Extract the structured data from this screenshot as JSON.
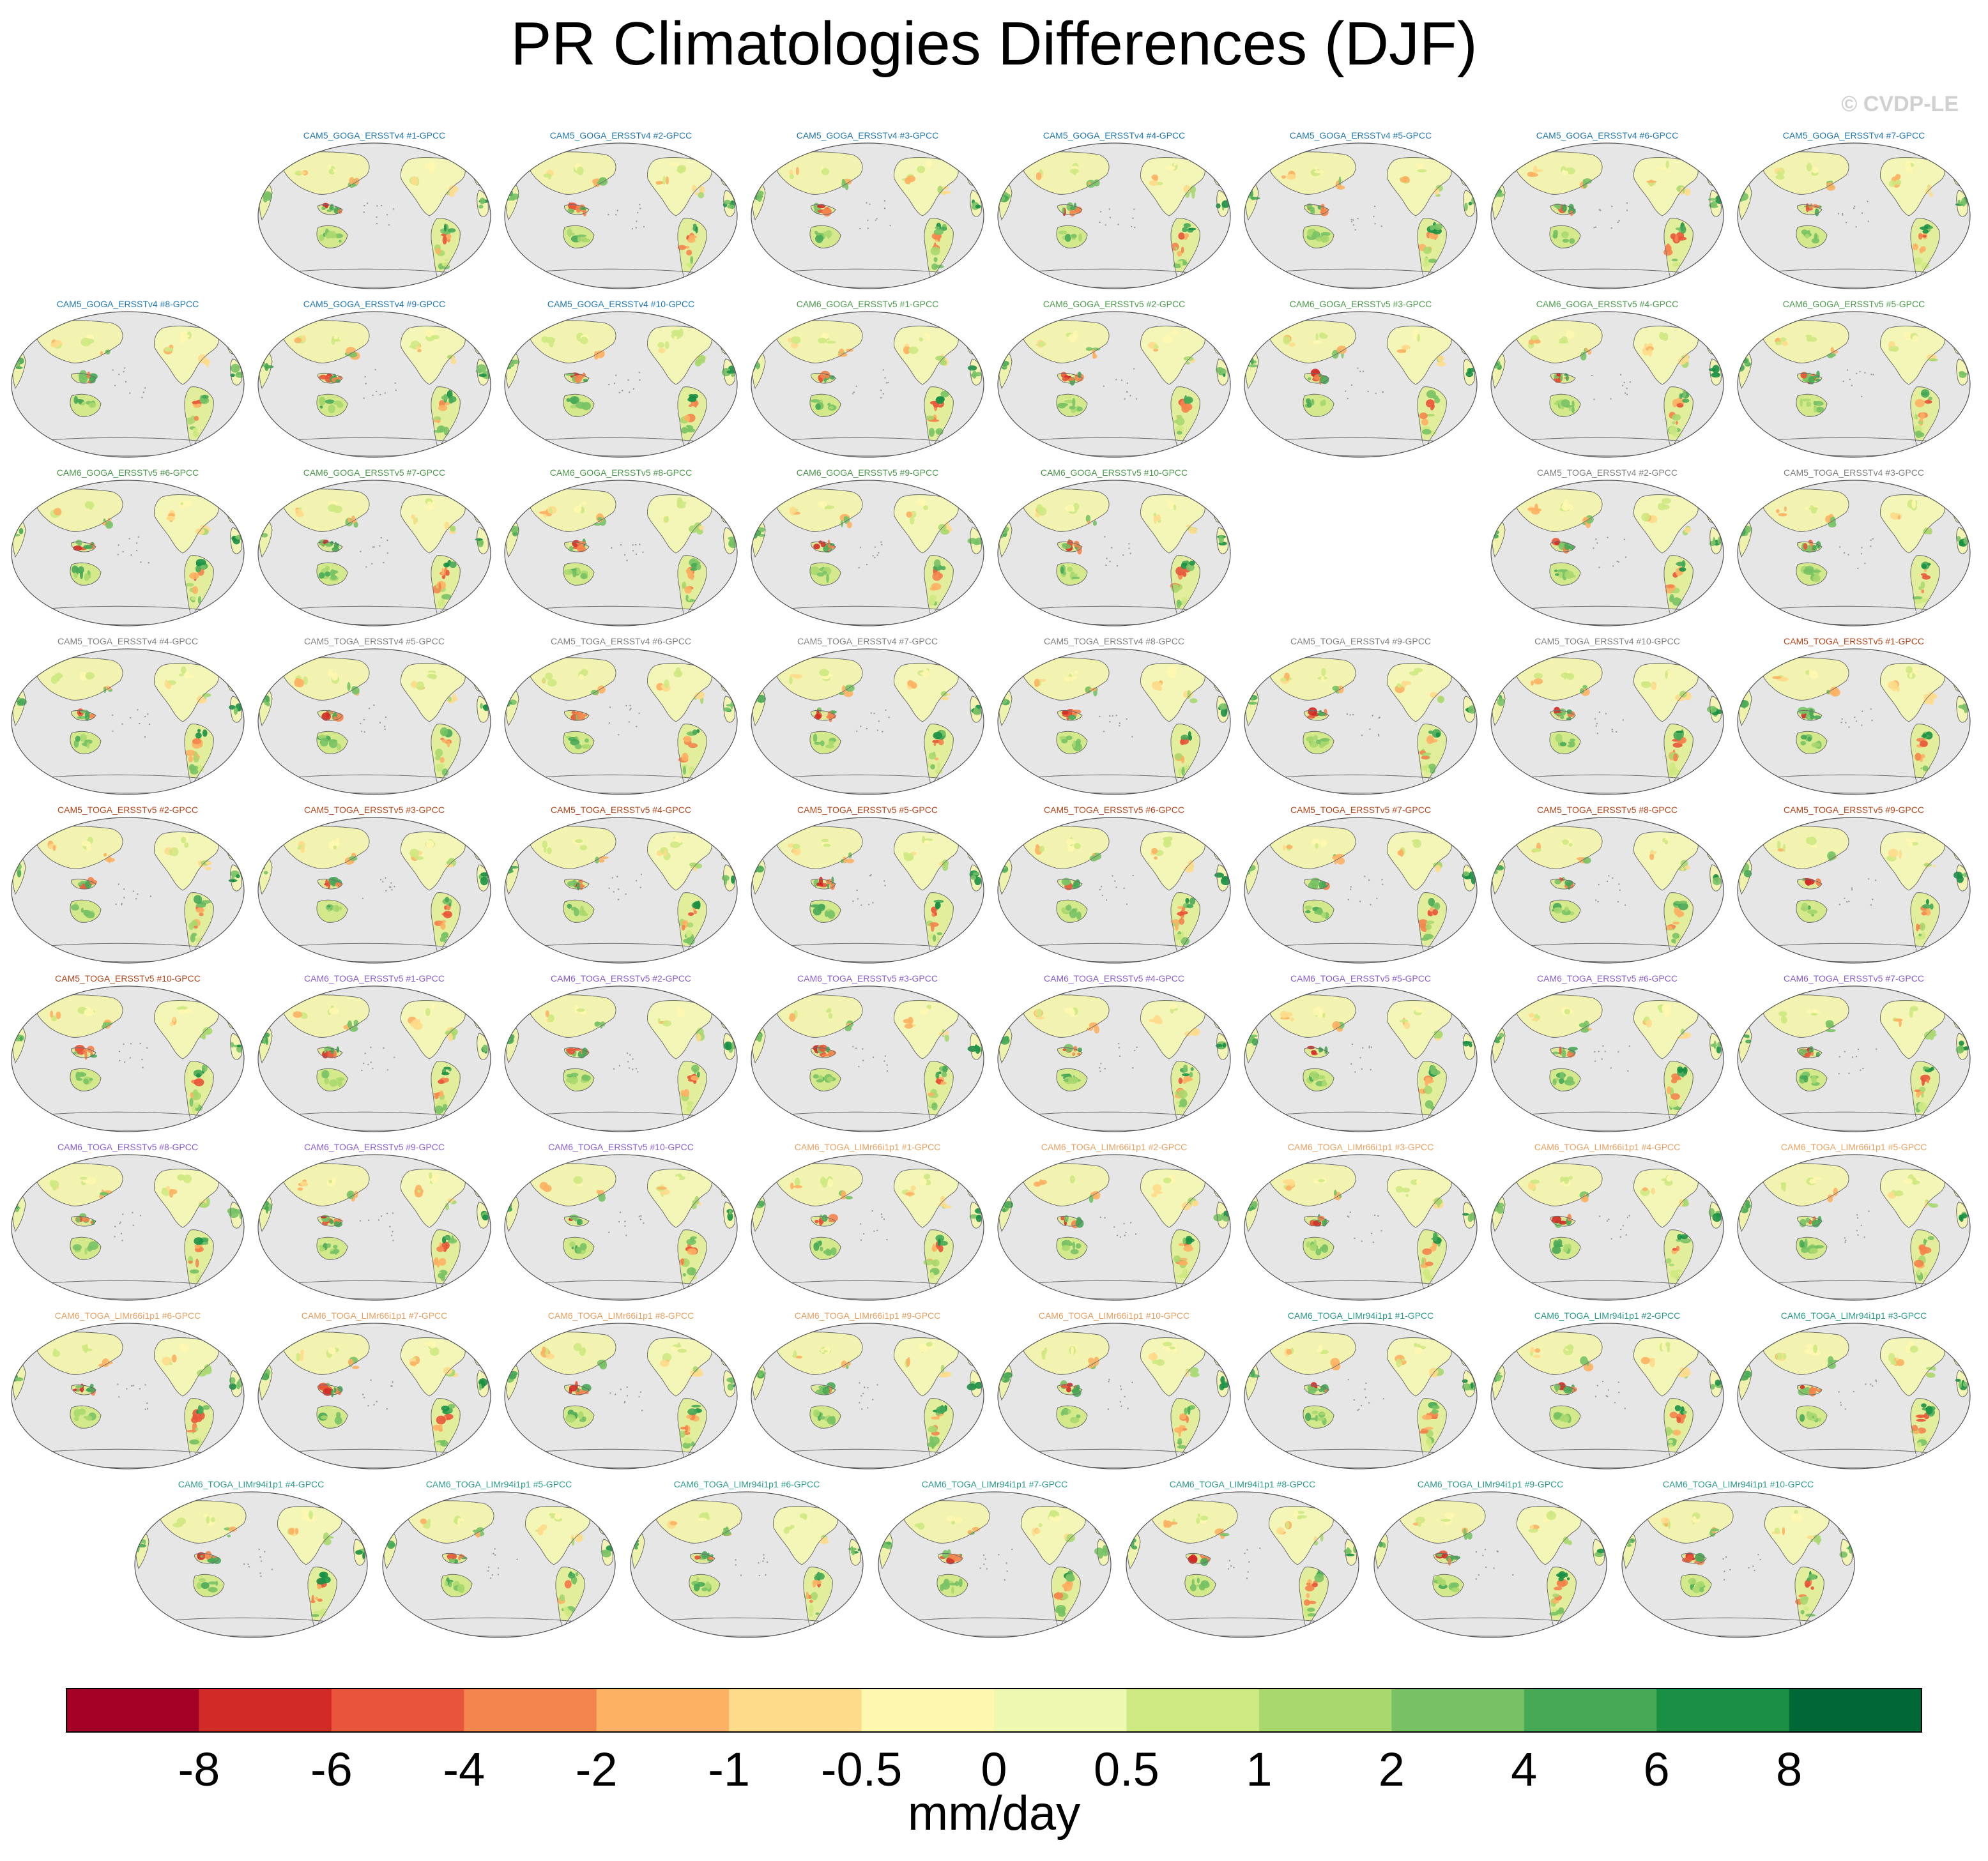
{
  "title": "PR Climatologies Differences (DJF)",
  "watermark": "© CVDP-LE",
  "colorbar": {
    "units": "mm/day",
    "tick_labels": [
      "-8",
      "-6",
      "-4",
      "-2",
      "-1",
      "-0.5",
      "0",
      "0.5",
      "1",
      "2",
      "4",
      "6",
      "8"
    ],
    "colors": [
      "#a50026",
      "#d22b27",
      "#e8553a",
      "#f4844d",
      "#fcb163",
      "#fedb8b",
      "#fef7b0",
      "#eff8b0",
      "#cee982",
      "#a8d86e",
      "#78c265",
      "#47a956",
      "#1a9045",
      "#006837"
    ]
  },
  "chart_data": {
    "type": "heatmap",
    "map_projection": "global, Pacific-centered",
    "variable": "PR",
    "season": "DJF",
    "units": "mm/day",
    "layout": "9 rows of global difference maps; row 3 has an empty gap between #10 and #2",
    "series_colors": {
      "CAM5_GOGA_ERSSTv4": "#1f78b4",
      "CAM6_GOGA_ERSSTv5": "#4a9a4a",
      "CAM5_TOGA_ERSSTv4": "#808080",
      "CAM5_TOGA_ERSSTv5": "#b4461a",
      "CAM6_TOGA_ERSSTv5": "#8a5cd0",
      "CAM6_TOGA_LIMr66i1p1": "#e8a060",
      "CAM6_TOGA_LIMr94i1p1": "#2a9a8a"
    },
    "rows": [
      {
        "indent": 1,
        "panels": [
          {
            "label": "CAM5_GOGA_ERSSTv4 #1-GPCC",
            "group": "CAM5_GOGA_ERSSTv4"
          },
          {
            "label": "CAM5_GOGA_ERSSTv4 #2-GPCC",
            "group": "CAM5_GOGA_ERSSTv4"
          },
          {
            "label": "CAM5_GOGA_ERSSTv4 #3-GPCC",
            "group": "CAM5_GOGA_ERSSTv4"
          },
          {
            "label": "CAM5_GOGA_ERSSTv4 #4-GPCC",
            "group": "CAM5_GOGA_ERSSTv4"
          },
          {
            "label": "CAM5_GOGA_ERSSTv4 #5-GPCC",
            "group": "CAM5_GOGA_ERSSTv4"
          },
          {
            "label": "CAM5_GOGA_ERSSTv4 #6-GPCC",
            "group": "CAM5_GOGA_ERSSTv4"
          },
          {
            "label": "CAM5_GOGA_ERSSTv4 #7-GPCC",
            "group": "CAM5_GOGA_ERSSTv4"
          }
        ]
      },
      {
        "indent": 0,
        "panels": [
          {
            "label": "CAM5_GOGA_ERSSTv4 #8-GPCC",
            "group": "CAM5_GOGA_ERSSTv4"
          },
          {
            "label": "CAM5_GOGA_ERSSTv4 #9-GPCC",
            "group": "CAM5_GOGA_ERSSTv4"
          },
          {
            "label": "CAM5_GOGA_ERSSTv4 #10-GPCC",
            "group": "CAM5_GOGA_ERSSTv4"
          },
          {
            "label": "CAM6_GOGA_ERSSTv5 #1-GPCC",
            "group": "CAM6_GOGA_ERSSTv5"
          },
          {
            "label": "CAM6_GOGA_ERSSTv5 #2-GPCC",
            "group": "CAM6_GOGA_ERSSTv5"
          },
          {
            "label": "CAM6_GOGA_ERSSTv5 #3-GPCC",
            "group": "CAM6_GOGA_ERSSTv5"
          },
          {
            "label": "CAM6_GOGA_ERSSTv5 #4-GPCC",
            "group": "CAM6_GOGA_ERSSTv5"
          },
          {
            "label": "CAM6_GOGA_ERSSTv5 #5-GPCC",
            "group": "CAM6_GOGA_ERSSTv5"
          }
        ]
      },
      {
        "indent": 0,
        "panels": [
          {
            "label": "CAM6_GOGA_ERSSTv5 #6-GPCC",
            "group": "CAM6_GOGA_ERSSTv5"
          },
          {
            "label": "CAM6_GOGA_ERSSTv5 #7-GPCC",
            "group": "CAM6_GOGA_ERSSTv5"
          },
          {
            "label": "CAM6_GOGA_ERSSTv5 #8-GPCC",
            "group": "CAM6_GOGA_ERSSTv5"
          },
          {
            "label": "CAM6_GOGA_ERSSTv5 #9-GPCC",
            "group": "CAM6_GOGA_ERSSTv5"
          },
          {
            "label": "CAM6_GOGA_ERSSTv5 #10-GPCC",
            "group": "CAM6_GOGA_ERSSTv5"
          },
          null,
          {
            "label": "CAM5_TOGA_ERSSTv4 #2-GPCC",
            "group": "CAM5_TOGA_ERSSTv4"
          },
          {
            "label": "CAM5_TOGA_ERSSTv4 #3-GPCC",
            "group": "CAM5_TOGA_ERSSTv4"
          }
        ]
      },
      {
        "indent": 0,
        "panels": [
          {
            "label": "CAM5_TOGA_ERSSTv4 #4-GPCC",
            "group": "CAM5_TOGA_ERSSTv4"
          },
          {
            "label": "CAM5_TOGA_ERSSTv4 #5-GPCC",
            "group": "CAM5_TOGA_ERSSTv4"
          },
          {
            "label": "CAM5_TOGA_ERSSTv4 #6-GPCC",
            "group": "CAM5_TOGA_ERSSTv4"
          },
          {
            "label": "CAM5_TOGA_ERSSTv4 #7-GPCC",
            "group": "CAM5_TOGA_ERSSTv4"
          },
          {
            "label": "CAM5_TOGA_ERSSTv4 #8-GPCC",
            "group": "CAM5_TOGA_ERSSTv4"
          },
          {
            "label": "CAM5_TOGA_ERSSTv4 #9-GPCC",
            "group": "CAM5_TOGA_ERSSTv4"
          },
          {
            "label": "CAM5_TOGA_ERSSTv4 #10-GPCC",
            "group": "CAM5_TOGA_ERSSTv4"
          },
          {
            "label": "CAM5_TOGA_ERSSTv5 #1-GPCC",
            "group": "CAM5_TOGA_ERSSTv5"
          }
        ]
      },
      {
        "indent": 0,
        "panels": [
          {
            "label": "CAM5_TOGA_ERSSTv5 #2-GPCC",
            "group": "CAM5_TOGA_ERSSTv5"
          },
          {
            "label": "CAM5_TOGA_ERSSTv5 #3-GPCC",
            "group": "CAM5_TOGA_ERSSTv5"
          },
          {
            "label": "CAM5_TOGA_ERSSTv5 #4-GPCC",
            "group": "CAM5_TOGA_ERSSTv5"
          },
          {
            "label": "CAM5_TOGA_ERSSTv5 #5-GPCC",
            "group": "CAM5_TOGA_ERSSTv5"
          },
          {
            "label": "CAM5_TOGA_ERSSTv5 #6-GPCC",
            "group": "CAM5_TOGA_ERSSTv5"
          },
          {
            "label": "CAM5_TOGA_ERSSTv5 #7-GPCC",
            "group": "CAM5_TOGA_ERSSTv5"
          },
          {
            "label": "CAM5_TOGA_ERSSTv5 #8-GPCC",
            "group": "CAM5_TOGA_ERSSTv5"
          },
          {
            "label": "CAM5_TOGA_ERSSTv5 #9-GPCC",
            "group": "CAM5_TOGA_ERSSTv5"
          }
        ]
      },
      {
        "indent": 0,
        "panels": [
          {
            "label": "CAM5_TOGA_ERSSTv5 #10-GPCC",
            "group": "CAM5_TOGA_ERSSTv5"
          },
          {
            "label": "CAM6_TOGA_ERSSTv5 #1-GPCC",
            "group": "CAM6_TOGA_ERSSTv5"
          },
          {
            "label": "CAM6_TOGA_ERSSTv5 #2-GPCC",
            "group": "CAM6_TOGA_ERSSTv5"
          },
          {
            "label": "CAM6_TOGA_ERSSTv5 #3-GPCC",
            "group": "CAM6_TOGA_ERSSTv5"
          },
          {
            "label": "CAM6_TOGA_ERSSTv5 #4-GPCC",
            "group": "CAM6_TOGA_ERSSTv5"
          },
          {
            "label": "CAM6_TOGA_ERSSTv5 #5-GPCC",
            "group": "CAM6_TOGA_ERSSTv5"
          },
          {
            "label": "CAM6_TOGA_ERSSTv5 #6-GPCC",
            "group": "CAM6_TOGA_ERSSTv5"
          },
          {
            "label": "CAM6_TOGA_ERSSTv5 #7-GPCC",
            "group": "CAM6_TOGA_ERSSTv5"
          }
        ]
      },
      {
        "indent": 0,
        "panels": [
          {
            "label": "CAM6_TOGA_ERSSTv5 #8-GPCC",
            "group": "CAM6_TOGA_ERSSTv5"
          },
          {
            "label": "CAM6_TOGA_ERSSTv5 #9-GPCC",
            "group": "CAM6_TOGA_ERSSTv5"
          },
          {
            "label": "CAM6_TOGA_ERSSTv5 #10-GPCC",
            "group": "CAM6_TOGA_ERSSTv5"
          },
          {
            "label": "CAM6_TOGA_LIMr66i1p1 #1-GPCC",
            "group": "CAM6_TOGA_LIMr66i1p1"
          },
          {
            "label": "CAM6_TOGA_LIMr66i1p1 #2-GPCC",
            "group": "CAM6_TOGA_LIMr66i1p1"
          },
          {
            "label": "CAM6_TOGA_LIMr66i1p1 #3-GPCC",
            "group": "CAM6_TOGA_LIMr66i1p1"
          },
          {
            "label": "CAM6_TOGA_LIMr66i1p1 #4-GPCC",
            "group": "CAM6_TOGA_LIMr66i1p1"
          },
          {
            "label": "CAM6_TOGA_LIMr66i1p1 #5-GPCC",
            "group": "CAM6_TOGA_LIMr66i1p1"
          }
        ]
      },
      {
        "indent": 0,
        "panels": [
          {
            "label": "CAM6_TOGA_LIMr66i1p1 #6-GPCC",
            "group": "CAM6_TOGA_LIMr66i1p1"
          },
          {
            "label": "CAM6_TOGA_LIMr66i1p1 #7-GPCC",
            "group": "CAM6_TOGA_LIMr66i1p1"
          },
          {
            "label": "CAM6_TOGA_LIMr66i1p1 #8-GPCC",
            "group": "CAM6_TOGA_LIMr66i1p1"
          },
          {
            "label": "CAM6_TOGA_LIMr66i1p1 #9-GPCC",
            "group": "CAM6_TOGA_LIMr66i1p1"
          },
          {
            "label": "CAM6_TOGA_LIMr66i1p1 #10-GPCC",
            "group": "CAM6_TOGA_LIMr66i1p1"
          },
          {
            "label": "CAM6_TOGA_LIMr94i1p1 #1-GPCC",
            "group": "CAM6_TOGA_LIMr94i1p1"
          },
          {
            "label": "CAM6_TOGA_LIMr94i1p1 #2-GPCC",
            "group": "CAM6_TOGA_LIMr94i1p1"
          },
          {
            "label": "CAM6_TOGA_LIMr94i1p1 #3-GPCC",
            "group": "CAM6_TOGA_LIMr94i1p1"
          }
        ]
      },
      {
        "indent": 0.5,
        "panels": [
          {
            "label": "CAM6_TOGA_LIMr94i1p1 #4-GPCC",
            "group": "CAM6_TOGA_LIMr94i1p1"
          },
          {
            "label": "CAM6_TOGA_LIMr94i1p1 #5-GPCC",
            "group": "CAM6_TOGA_LIMr94i1p1"
          },
          {
            "label": "CAM6_TOGA_LIMr94i1p1 #6-GPCC",
            "group": "CAM6_TOGA_LIMr94i1p1"
          },
          {
            "label": "CAM6_TOGA_LIMr94i1p1 #7-GPCC",
            "group": "CAM6_TOGA_LIMr94i1p1"
          },
          {
            "label": "CAM6_TOGA_LIMr94i1p1 #8-GPCC",
            "group": "CAM6_TOGA_LIMr94i1p1"
          },
          {
            "label": "CAM6_TOGA_LIMr94i1p1 #9-GPCC",
            "group": "CAM6_TOGA_LIMr94i1p1"
          },
          {
            "label": "CAM6_TOGA_LIMr94i1p1 #10-GPCC",
            "group": "CAM6_TOGA_LIMr94i1p1"
          }
        ]
      }
    ]
  }
}
